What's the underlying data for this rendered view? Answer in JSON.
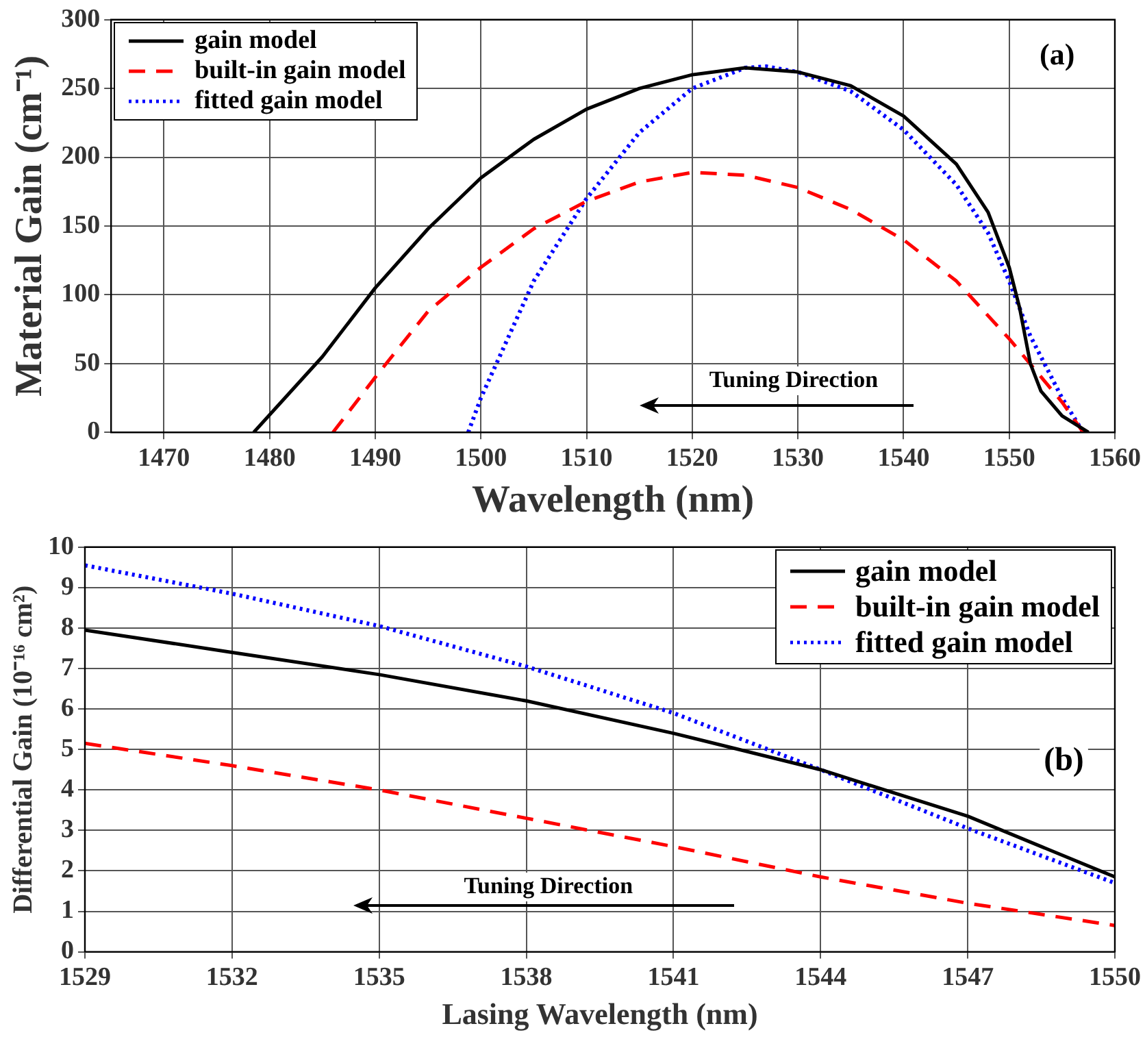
{
  "chart_data": [
    {
      "type": "line",
      "xlabel": "Wavelength (nm)",
      "ylabel": "Material Gain (cm⁻¹)",
      "xlim": [
        1465,
        1560
      ],
      "xticks": [
        1470,
        1480,
        1490,
        1500,
        1510,
        1520,
        1530,
        1540,
        1550,
        1560
      ],
      "ylim": [
        0,
        300
      ],
      "yticks": [
        0,
        50,
        100,
        150,
        200,
        250,
        300
      ],
      "grid": true,
      "legend": "top left",
      "marker": "none",
      "annotations": [
        "(a)",
        "Tuning Direction"
      ],
      "series": [
        {
          "name": "gain model",
          "color": "#000000",
          "line_style": "solid",
          "x": [
            1478.5,
            1485,
            1490,
            1495,
            1500,
            1505,
            1510,
            1515,
            1520,
            1525,
            1530,
            1535,
            1540,
            1545,
            1548,
            1550,
            1551,
            1552,
            1553,
            1555,
            1557.5
          ],
          "values": [
            0,
            55,
            105,
            148,
            185,
            213,
            235,
            250,
            260,
            265,
            262,
            252,
            230,
            195,
            160,
            120,
            90,
            50,
            30,
            12,
            0
          ]
        },
        {
          "name": "built-in gain model",
          "color": "#ff0000",
          "line_style": "dashed",
          "x": [
            1486,
            1490,
            1495,
            1500,
            1505,
            1510,
            1515,
            1520,
            1525,
            1530,
            1535,
            1540,
            1545,
            1550,
            1555,
            1557
          ],
          "values": [
            0,
            40,
            88,
            120,
            148,
            168,
            182,
            189,
            187,
            178,
            162,
            140,
            110,
            68,
            22,
            0
          ]
        },
        {
          "name": "fitted gain model",
          "color": "#0000ff",
          "line_style": "dotted",
          "x": [
            1498.8,
            1500,
            1505,
            1510,
            1515,
            1520,
            1525,
            1527,
            1530,
            1535,
            1540,
            1545,
            1548,
            1550,
            1552,
            1555,
            1557
          ],
          "values": [
            0,
            25,
            110,
            170,
            218,
            250,
            265,
            266,
            262,
            248,
            220,
            180,
            145,
            110,
            70,
            25,
            0
          ]
        }
      ]
    },
    {
      "type": "line",
      "xlabel": "Lasing Wavelength (nm)",
      "ylabel": "Differential Gain (10⁻¹⁶ cm²)",
      "xlim": [
        1529,
        1550
      ],
      "xticks": [
        1529,
        1532,
        1535,
        1538,
        1541,
        1544,
        1547,
        1550
      ],
      "ylim": [
        0,
        10
      ],
      "yticks": [
        0,
        1,
        2,
        3,
        4,
        5,
        6,
        7,
        8,
        9,
        10
      ],
      "grid": true,
      "legend": "top right",
      "marker": "none",
      "annotations": [
        "(b)",
        "Tuning Direction"
      ],
      "series": [
        {
          "name": "gain model",
          "color": "#000000",
          "line_style": "solid",
          "x": [
            1529,
            1532,
            1535,
            1538,
            1541,
            1544,
            1547,
            1550
          ],
          "values": [
            7.95,
            7.4,
            6.85,
            6.2,
            5.4,
            4.5,
            3.35,
            1.85
          ]
        },
        {
          "name": "built-in gain model",
          "color": "#ff0000",
          "line_style": "dashed",
          "x": [
            1529,
            1532,
            1535,
            1538,
            1541,
            1544,
            1547,
            1550
          ],
          "values": [
            5.15,
            4.6,
            4.0,
            3.3,
            2.6,
            1.85,
            1.2,
            0.65
          ]
        },
        {
          "name": "fitted gain model",
          "color": "#0000ff",
          "line_style": "dotted",
          "x": [
            1529,
            1532,
            1535,
            1538,
            1541,
            1544,
            1547,
            1550
          ],
          "values": [
            9.55,
            8.85,
            8.05,
            7.05,
            5.9,
            4.5,
            3.05,
            1.7
          ]
        }
      ]
    }
  ]
}
